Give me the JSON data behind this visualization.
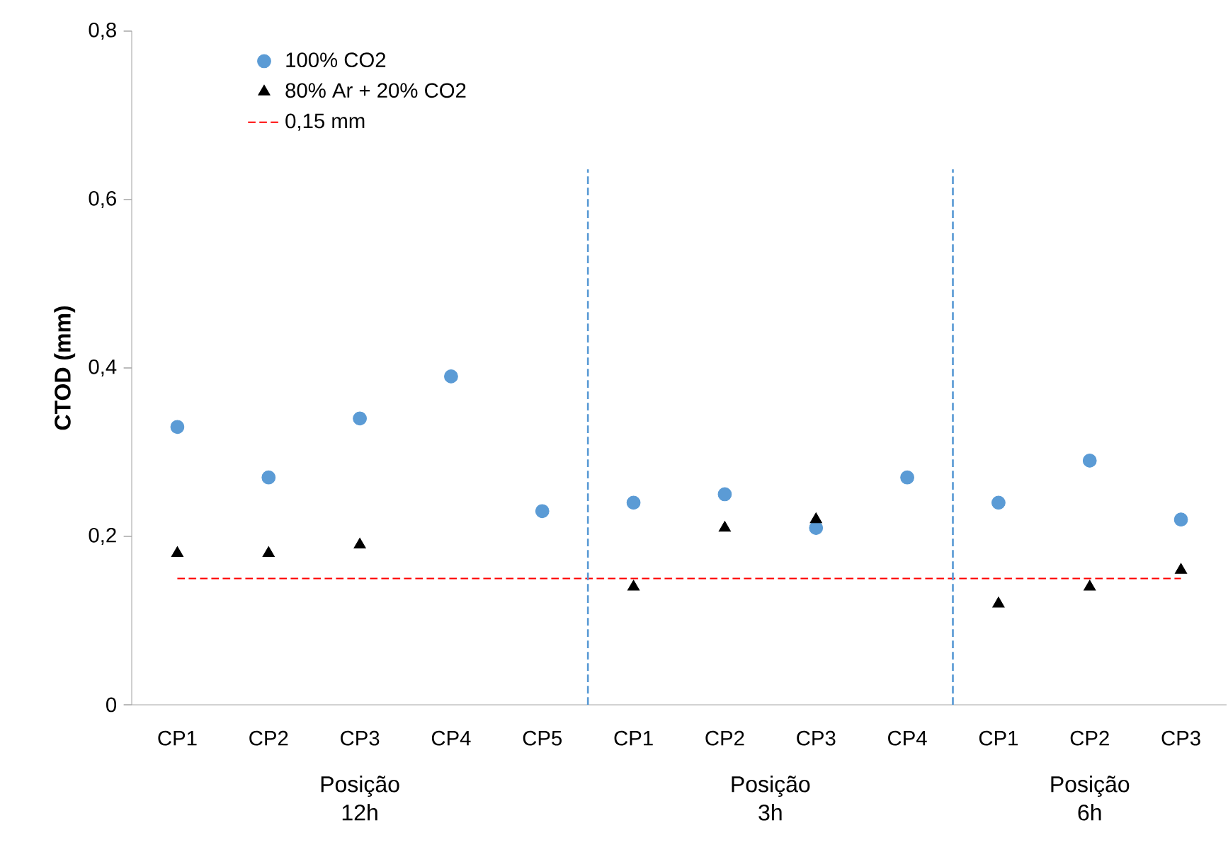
{
  "chart_data": {
    "type": "scatter",
    "ylabel": "CTOD (mm)",
    "categories": [
      "CP1",
      "CP2",
      "CP3",
      "CP4",
      "CP5",
      "CP1",
      "CP2",
      "CP3",
      "CP4",
      "CP1",
      "CP2",
      "CP3"
    ],
    "series": [
      {
        "name": "100% CO2",
        "color": "#5b9bd5",
        "marker": "circle",
        "values": [
          0.33,
          0.27,
          0.34,
          0.39,
          0.23,
          0.24,
          0.25,
          0.21,
          0.27,
          0.24,
          0.29,
          0.22
        ]
      },
      {
        "name": "80% Ar + 20% CO2",
        "color": "#000000",
        "marker": "triangle",
        "values": [
          0.18,
          0.18,
          0.19,
          null,
          null,
          0.14,
          0.21,
          0.22,
          null,
          0.12,
          0.14,
          0.16
        ]
      }
    ],
    "ylim": [
      0,
      0.8
    ],
    "yticks": [
      0,
      {
        "value": 0.2,
        "label": "0,2"
      },
      {
        "value": 0.4,
        "label": "0,4"
      },
      {
        "value": 0.6,
        "label": "0,6"
      },
      {
        "value": 0.8,
        "label": "0,8"
      }
    ],
    "ref_lines": [
      {
        "axis": "y",
        "value": 0.15,
        "label": "0,15 mm",
        "color": "#ff0000",
        "line_style": "dashed"
      }
    ],
    "annotations": [
      "Posição 12h",
      "Posição 3h",
      "Posição 6h"
    ],
    "grid": false,
    "legend": "top left"
  }
}
